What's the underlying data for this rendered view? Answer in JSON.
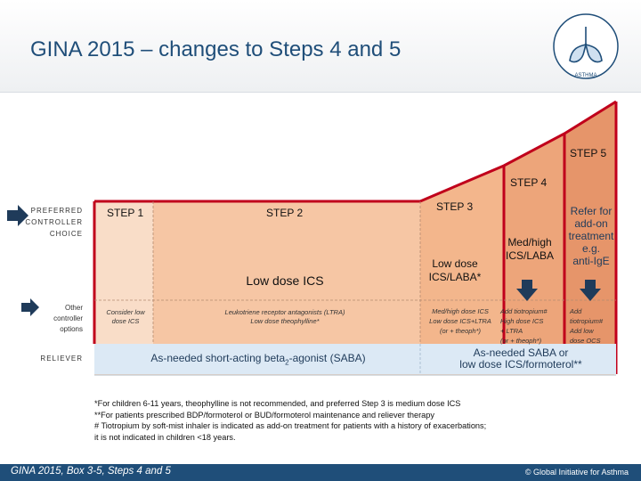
{
  "header": {
    "title": "GINA 2015 – changes to Steps 4 and 5",
    "logo_text": "GLOBAL INITIATIVE FOR ASTHMA"
  },
  "row_labels": {
    "preferred": [
      "PREFERRED",
      "CONTROLLER",
      "CHOICE"
    ],
    "other": [
      "Other",
      "controller",
      "options"
    ],
    "reliever": "RELIEVER"
  },
  "steps": {
    "step1": "STEP 1",
    "step2": "STEP 2",
    "step3": "STEP 3",
    "step4": "STEP 4",
    "step5": "STEP 5"
  },
  "preferred": {
    "step2_low_dose_ics": "Low dose ICS",
    "step3_line1": "Low dose",
    "step3_line2": "ICS/LABA*",
    "step4_line1": "Med/high",
    "step4_line2": "ICS/LABA",
    "step5_lines": [
      "Refer for",
      "add-on",
      "treatment",
      "e.g.",
      "anti-IgE"
    ]
  },
  "other_options": {
    "step1": [
      "Consider low",
      "dose ICS"
    ],
    "step2": [
      "Leukotriene receptor antagonists (LTRA)",
      "Low dose theophylline*"
    ],
    "step3": [
      "Med/high dose ICS",
      "Low dose ICS+LTRA",
      "(or + theoph*)"
    ],
    "step4": [
      "Add tiotropium#",
      "High dose ICS",
      "+ LTRA",
      "(or + theoph*)"
    ],
    "step5": [
      "Add",
      "tiotropium#",
      "Add low",
      "dose OCS"
    ]
  },
  "reliever": {
    "left_prefix": "As-needed short-acting beta",
    "left_sub": "2",
    "left_suffix": "-agonist (SABA)",
    "right_line1": "As-needed SABA or",
    "right_line2": "low dose ICS/formoterol**"
  },
  "footnotes": [
    "*For children 6-11 years, theophylline  is not recommended, and preferred Step 3 is medium dose ICS",
    "**For patients prescribed BDP/formoterol or BUD/formoterol maintenance and reliever therapy",
    "# Tiotropium by soft-mist inhaler is indicated as add-on treatment for patients with a history of exacerbations;",
    "it is not indicated in children <18 years."
  ],
  "footer": {
    "left": "GINA 2015, Box 3-5, Steps 4 and 5",
    "right": "© Global Initiative for Asthma"
  },
  "colors": {
    "title": "#1f4e79",
    "footer_bg": "#1f4e79",
    "step_red": "#c0001b",
    "peach_light": "#fbe3d2",
    "peach_mid": "#f6c6a4",
    "peach_dark": "#eda57a",
    "arrow_blue": "#1f3b5a",
    "reliever_blue": "#dce9f5"
  }
}
